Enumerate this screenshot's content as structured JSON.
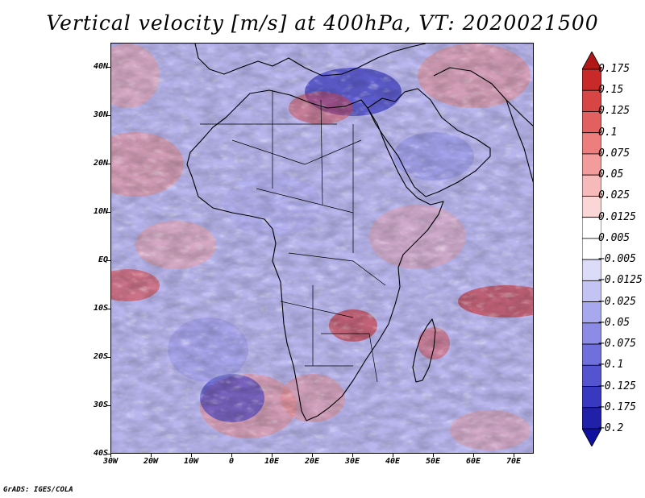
{
  "title": "Vertical velocity [m/s] at 400hPa, VT: 2020021500",
  "credit": "GrADS: IGES/COLA",
  "map": {
    "lon_range": [
      -30,
      75
    ],
    "lat_range": [
      -40,
      45
    ],
    "lat_labels": [
      "40N",
      "30N",
      "20N",
      "10N",
      "EQ",
      "10S",
      "20S",
      "30S",
      "40S"
    ],
    "lat_values": [
      40,
      30,
      20,
      10,
      0,
      -10,
      -20,
      -30,
      -40
    ],
    "lon_labels": [
      "30W",
      "20W",
      "10W",
      "0",
      "10E",
      "20E",
      "30E",
      "40E",
      "50E",
      "60E",
      "70E"
    ],
    "lon_values": [
      -30,
      -20,
      -10,
      0,
      10,
      20,
      30,
      40,
      50,
      60,
      70
    ]
  },
  "colorbar": {
    "levels": [
      "0.175",
      "0.15",
      "0.125",
      "0.1",
      "0.075",
      "0.05",
      "0.025",
      "0.0125",
      "0.005",
      "−0.005",
      "−0.0125",
      "−0.025",
      "−0.05",
      "−0.075",
      "−0.1",
      "−0.125",
      "−0.175",
      "−0.2"
    ],
    "colors": [
      "#b01818",
      "#c82a2a",
      "#d84545",
      "#e36060",
      "#ec7e7e",
      "#f29c9c",
      "#f7baba",
      "#fbd6d6",
      "#ffffff",
      "#ffffff",
      "#dcdcf8",
      "#c4c4f4",
      "#a8a8ee",
      "#8c8ce6",
      "#7070dc",
      "#5454d0",
      "#3838c0",
      "#2020a8",
      "#1010a0"
    ]
  }
}
